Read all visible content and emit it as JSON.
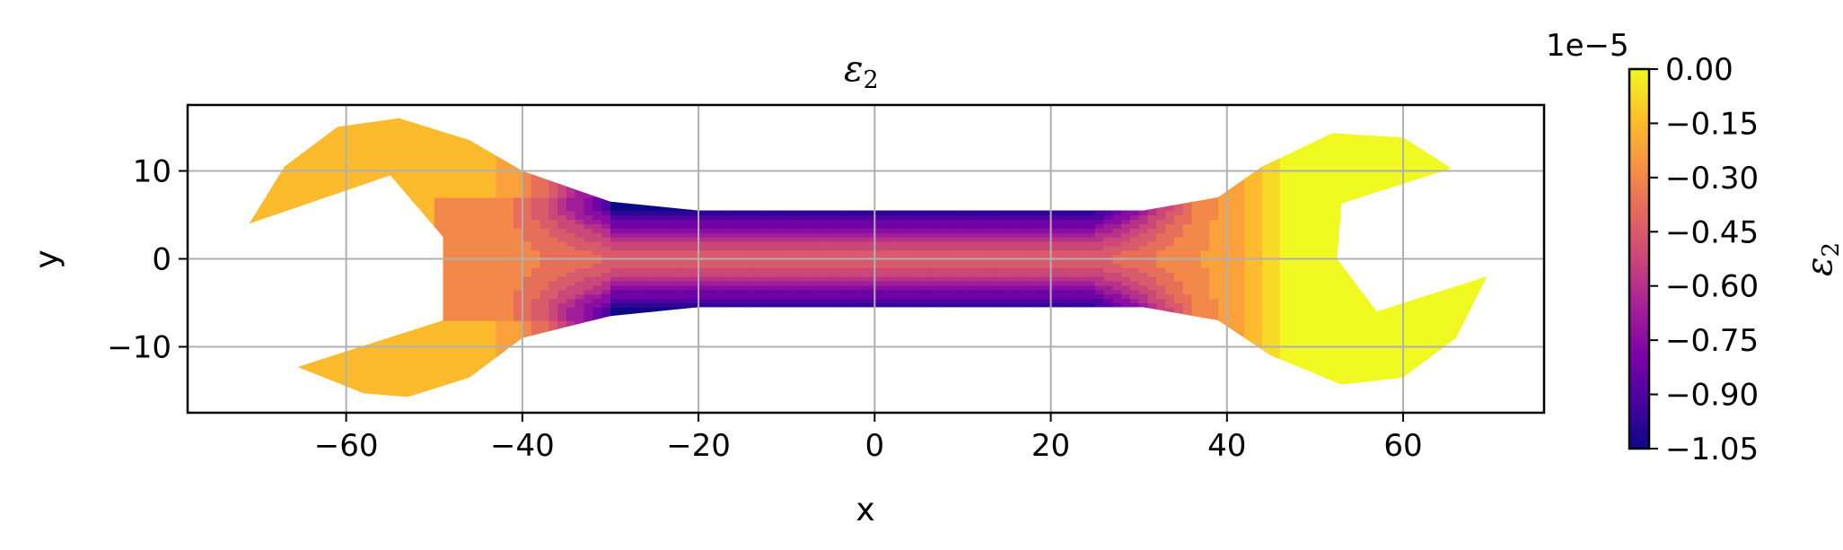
{
  "chart_data": {
    "type": "contour",
    "title": "ε",
    "title_subscript": "2",
    "xlabel": "x",
    "ylabel": "y",
    "xlim": [
      -78,
      76
    ],
    "ylim": [
      -17.5,
      17.5
    ],
    "xticks": [
      -60,
      -40,
      -20,
      0,
      20,
      40,
      60
    ],
    "xtick_labels": [
      "−60",
      "−40",
      "−20",
      "0",
      "20",
      "40",
      "60"
    ],
    "yticks": [
      10,
      0,
      -10
    ],
    "ytick_labels": [
      "10",
      "0",
      "−10"
    ],
    "grid": true,
    "colormap": "plasma",
    "colorbar": {
      "label": "ε",
      "label_subscript": "2",
      "offset_text": "1e−5",
      "range": [
        -1.05,
        0.0
      ],
      "ticks": [
        0.0,
        -0.15,
        -0.3,
        -0.45,
        -0.6,
        -0.75,
        -0.9,
        -1.05
      ],
      "tick_labels": [
        "0.00",
        "−0.15",
        "−0.30",
        "−0.45",
        "−0.60",
        "−0.75",
        "−0.90",
        "−1.05"
      ]
    },
    "field": {
      "description_units": "strain x 1e-5 over wrench-shaped domain",
      "boundary": [
        [
          -71,
          4
        ],
        [
          -67,
          10.5
        ],
        [
          -61,
          15
        ],
        [
          -54,
          16
        ],
        [
          -46,
          13.5
        ],
        [
          -40,
          10
        ],
        [
          -30,
          6.5
        ],
        [
          -20,
          5.5
        ],
        [
          0,
          5.5
        ],
        [
          20,
          5.5
        ],
        [
          30.5,
          5.5
        ],
        [
          39,
          7
        ],
        [
          44,
          10.5
        ],
        [
          52,
          14.3
        ],
        [
          60,
          13.8
        ],
        [
          65.5,
          10.3
        ],
        [
          53,
          6.3
        ],
        [
          52.5,
          0
        ],
        [
          57,
          -6
        ],
        [
          69.5,
          -2
        ],
        [
          66,
          -9
        ],
        [
          60,
          -13.5
        ],
        [
          53,
          -14.3
        ],
        [
          45,
          -11
        ],
        [
          39,
          -7
        ],
        [
          30.5,
          -5.5
        ],
        [
          20,
          -5.5
        ],
        [
          0,
          -5.5
        ],
        [
          -20,
          -5.5
        ],
        [
          -30,
          -6.5
        ],
        [
          -40,
          -9
        ],
        [
          -46,
          -13.5
        ],
        [
          -53,
          -15.7
        ],
        [
          -58,
          -15.3
        ],
        [
          -65.5,
          -12.3
        ],
        [
          -49,
          -7
        ],
        [
          -49,
          2.5
        ],
        [
          -55,
          9.5
        ]
      ],
      "neck_min": -1.05,
      "neck_mid": -0.45,
      "left_head": -0.3,
      "left_jaw": -0.18,
      "right_shoulder": -0.25,
      "right_head": -0.02
    }
  }
}
